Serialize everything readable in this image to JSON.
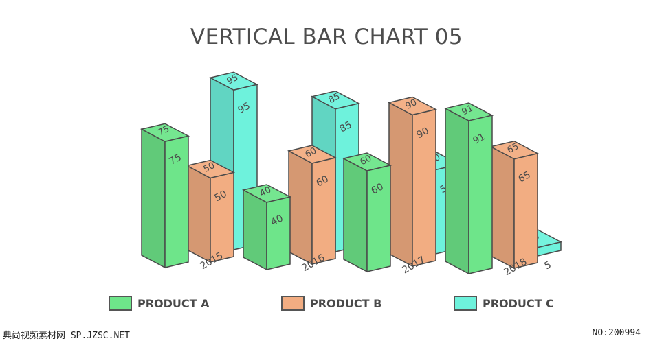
{
  "chart_data": {
    "type": "bar",
    "title": "VERTICAL BAR CHART 05",
    "categories": [
      "2015",
      "2016",
      "2017",
      "2018"
    ],
    "series": [
      {
        "name": "PRODUCT A",
        "values": [
          75,
          40,
          60,
          91
        ],
        "color": "#6ee58a"
      },
      {
        "name": "PRODUCT B",
        "values": [
          50,
          60,
          90,
          65
        ],
        "color": "#f2ad82"
      },
      {
        "name": "PRODUCT C",
        "values": [
          95,
          85,
          50,
          5
        ],
        "color": "#6ef2dc"
      }
    ],
    "ylim": [
      0,
      100
    ],
    "grid": false,
    "legend_position": "bottom"
  },
  "watermark": {
    "left": "典尚视频素材网 SP.JZSC.NET",
    "right": "NO:200994"
  }
}
